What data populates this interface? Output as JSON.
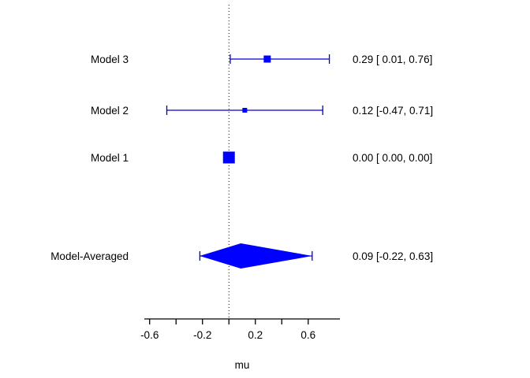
{
  "chart_data": {
    "type": "forest",
    "title": "",
    "xlabel": "mu",
    "xlim": [
      -0.64,
      0.84
    ],
    "reference_line": 0,
    "x_ticks": [
      -0.6,
      -0.4,
      -0.2,
      0,
      0.2,
      0.4,
      0.6
    ],
    "x_tick_labels": [
      "-0.6",
      "",
      "-0.2",
      "",
      "0.2",
      "",
      "0.6"
    ],
    "grid": false,
    "legend": "none",
    "rows": [
      {
        "label": "Model 3",
        "estimate": 0.29,
        "ci_lower": 0.01,
        "ci_upper": 0.76,
        "annotation": "0.29 [ 0.01, 0.76]",
        "shape": "square",
        "size": 9
      },
      {
        "label": "Model 2",
        "estimate": 0.12,
        "ci_lower": -0.47,
        "ci_upper": 0.71,
        "annotation": "0.12 [-0.47, 0.71]",
        "shape": "square",
        "size": 6
      },
      {
        "label": "Model 1",
        "estimate": 0.0,
        "ci_lower": 0.0,
        "ci_upper": 0.0,
        "annotation": "0.00 [ 0.00, 0.00]",
        "shape": "square",
        "size": 15
      },
      {
        "label": "Model-Averaged",
        "estimate": 0.09,
        "ci_lower": -0.22,
        "ci_upper": 0.63,
        "annotation": "0.09 [-0.22, 0.63]",
        "shape": "diamond",
        "size": 16
      }
    ],
    "colors": {
      "marker": "#0000ff",
      "ci_line": "#0000cc",
      "reference": "#000000",
      "axis": "#000000",
      "text": "#000000",
      "background": "#ffffff"
    }
  }
}
